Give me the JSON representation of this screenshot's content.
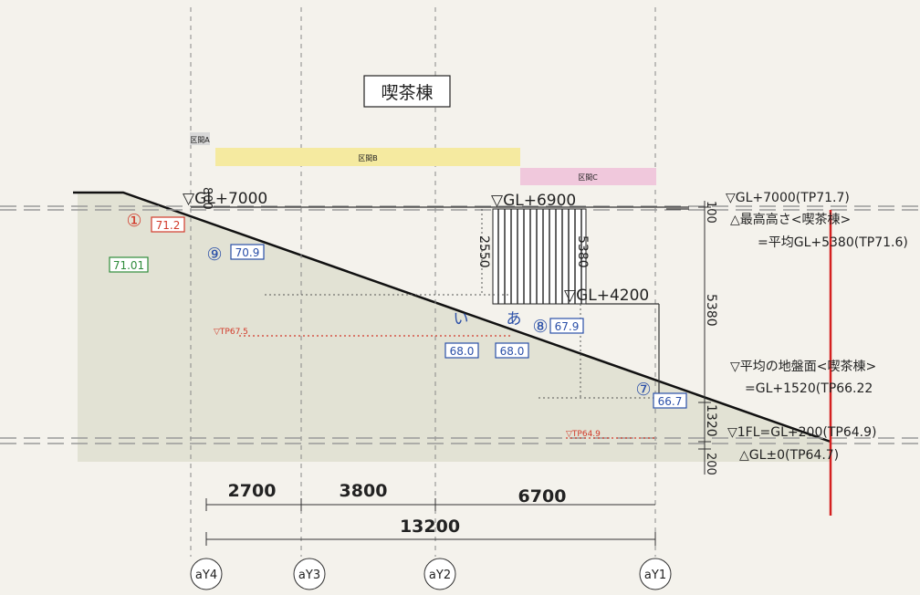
{
  "title": "喫茶棟",
  "sections": {
    "a": "区間A",
    "b": "区間B",
    "c": "区間C"
  },
  "levels": {
    "gl7000": "▽GL+7000",
    "gl6900": "▽GL+6900",
    "gl4200": "▽GL+4200",
    "tp675": "▽TP67.5",
    "tp649": "▽TP64.9"
  },
  "dims_vertical": {
    "d800": "800",
    "d2550": "2550",
    "d5380a": "5380",
    "d100": "100",
    "d5380b": "5380",
    "d1320": "1320",
    "d200": "200"
  },
  "dims_horizontal": {
    "d2700": "2700",
    "d3800": "3800",
    "d6700": "6700",
    "d13200": "13200"
  },
  "grid_axes": [
    "aY4",
    "aY3",
    "aY2",
    "aY1"
  ],
  "markers": {
    "m1": "①",
    "m9": "⑨",
    "mi": "い",
    "ma": "あ",
    "m8": "⑧",
    "m7": "⑦"
  },
  "values": {
    "v712": "71.2",
    "v7101": "71.01",
    "v709": "70.9",
    "v680a": "68.0",
    "v680b": "68.0",
    "v679": "67.9",
    "v667": "66.7"
  },
  "notes": {
    "n1": "▽GL+7000(TP71.7)",
    "n2": "△最高高さ<喫茶棟>",
    "n3": "=平均GL+5380(TP71.6)",
    "n4": "▽平均の地盤面<喫茶棟>",
    "n5": "=GL+1520(TP66.22",
    "n6": "▽1FL=GL+200(TP64.9)",
    "n7": "△GL±0(TP64.7)"
  },
  "colors": {
    "ground": "#dcdccc",
    "yellow_band": "#f5eaa0",
    "pink_band": "#f0c8dc",
    "red_line": "#d42020",
    "blue": "#2a4fa8",
    "orange_red": "#d23a2a",
    "green": "#2e8b3a"
  }
}
